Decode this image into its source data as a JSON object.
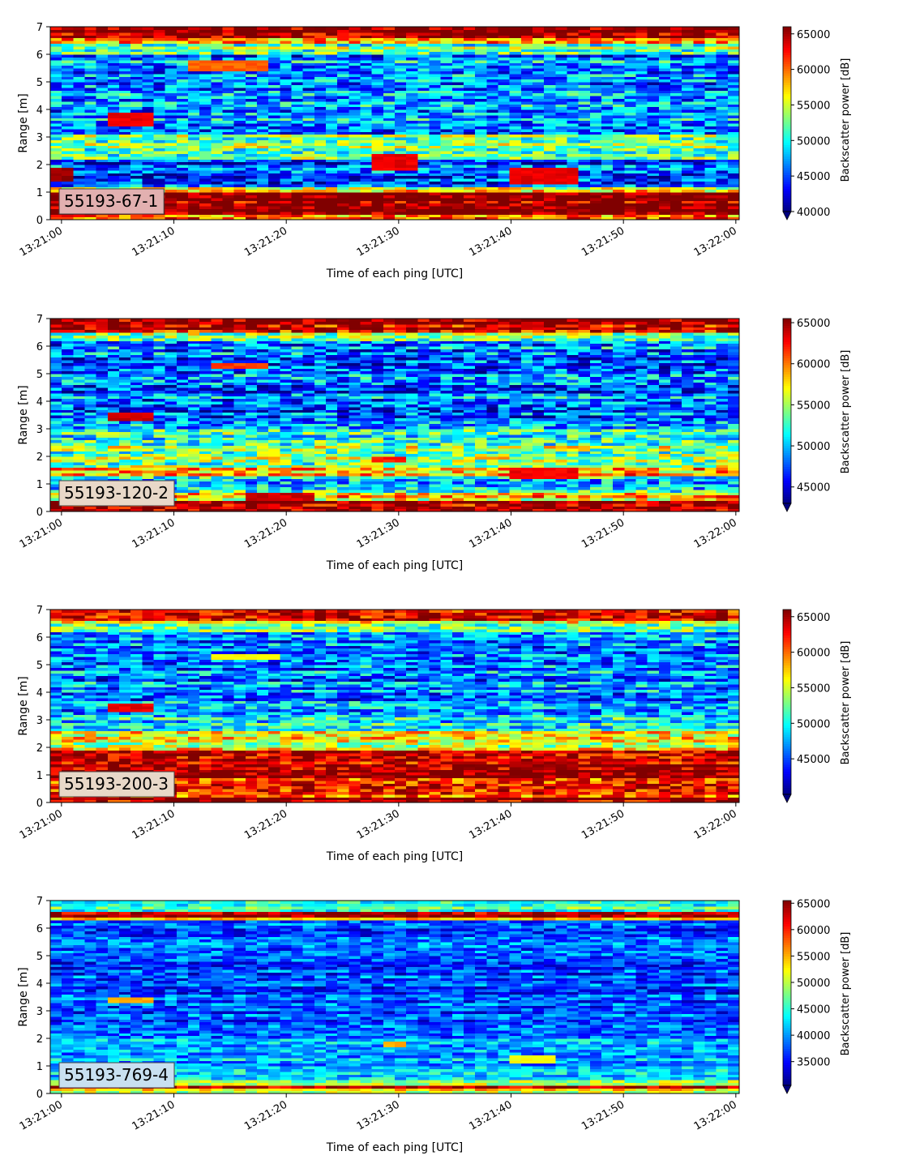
{
  "figure": {
    "xlabel": "Time of each ping [UTC]",
    "ylabel": "Range [m]",
    "colorbar_label": "Backscatter power [dB]",
    "colormap": "jet"
  },
  "chart_data": [
    {
      "type": "heatmap",
      "label": "55193-67-1",
      "label_box_color": "#e2b0b0",
      "x_range": [
        "13:21:00",
        "13:22:00"
      ],
      "x_ticks": [
        "13:21:00",
        "13:21:10",
        "13:21:20",
        "13:21:30",
        "13:21:40",
        "13:21:50",
        "13:22:00"
      ],
      "y_range": [
        0,
        7
      ],
      "y_ticks": [
        0,
        1,
        2,
        3,
        4,
        5,
        6,
        7
      ],
      "color_range": [
        40000,
        66000
      ],
      "colorbar_ticks": [
        40000,
        45000,
        50000,
        55000,
        60000,
        65000
      ],
      "colorbar_extend": "min",
      "background_bands": [
        {
          "from": 0.0,
          "to": 0.25,
          "value": 60000
        },
        {
          "from": 0.25,
          "to": 1.05,
          "value": 66000
        },
        {
          "from": 1.05,
          "to": 1.2,
          "value": 56000
        },
        {
          "from": 1.2,
          "to": 2.2,
          "value": 45000
        },
        {
          "from": 2.2,
          "to": 3.1,
          "value": 52000
        },
        {
          "from": 3.1,
          "to": 6.0,
          "value": 47000
        },
        {
          "from": 6.0,
          "to": 6.45,
          "value": 53000
        },
        {
          "from": 6.45,
          "to": 6.6,
          "value": 60000
        },
        {
          "from": 6.6,
          "to": 7.0,
          "value": 66000
        }
      ],
      "noise": 6000,
      "features": [
        {
          "t0": -1.0,
          "t1": 1.0,
          "r0": 1.45,
          "r1": 1.9,
          "value": 66000
        },
        {
          "t0": 3.8,
          "t1": 8.7,
          "r0": 3.4,
          "r1": 3.9,
          "value": 64000
        },
        {
          "t0": 11.5,
          "t1": 18.2,
          "r0": 5.4,
          "r1": 5.8,
          "value": 61000
        },
        {
          "t0": 27.2,
          "t1": 31.6,
          "r0": 1.8,
          "r1": 2.4,
          "value": 64000
        },
        {
          "t0": 40.2,
          "t1": 46.0,
          "r0": 1.35,
          "r1": 1.95,
          "value": 64000
        }
      ]
    },
    {
      "type": "heatmap",
      "label": "55193-120-2",
      "label_box_color": "#e8d8c8",
      "x_range": [
        "13:21:00",
        "13:22:00"
      ],
      "x_ticks": [
        "13:21:00",
        "13:21:10",
        "13:21:20",
        "13:21:30",
        "13:21:40",
        "13:21:50",
        "13:22:00"
      ],
      "y_range": [
        0,
        7
      ],
      "y_ticks": [
        0,
        1,
        2,
        3,
        4,
        5,
        6,
        7
      ],
      "color_range": [
        43000,
        65500
      ],
      "colorbar_ticks": [
        45000,
        50000,
        55000,
        60000,
        65000
      ],
      "colorbar_extend": "min",
      "background_bands": [
        {
          "from": 0.0,
          "to": 0.4,
          "value": 65500
        },
        {
          "from": 0.4,
          "to": 0.7,
          "value": 58000
        },
        {
          "from": 0.7,
          "to": 1.3,
          "value": 51000
        },
        {
          "from": 1.3,
          "to": 1.6,
          "value": 60000
        },
        {
          "from": 1.6,
          "to": 2.6,
          "value": 54000
        },
        {
          "from": 2.6,
          "to": 3.1,
          "value": 52000
        },
        {
          "from": 3.1,
          "to": 6.2,
          "value": 48000
        },
        {
          "from": 6.2,
          "to": 6.55,
          "value": 55000
        },
        {
          "from": 6.55,
          "to": 7.0,
          "value": 64500
        }
      ],
      "noise": 5500,
      "features": [
        {
          "t0": 4.0,
          "t1": 8.5,
          "r0": 3.3,
          "r1": 3.6,
          "value": 64500
        },
        {
          "t0": 13.5,
          "t1": 18.5,
          "r0": 5.2,
          "r1": 5.4,
          "value": 62000
        },
        {
          "t0": 28.0,
          "t1": 31.0,
          "r0": 1.8,
          "r1": 2.0,
          "value": 63000
        },
        {
          "t0": 39.5,
          "t1": 46.0,
          "r0": 1.2,
          "r1": 1.6,
          "value": 63500
        },
        {
          "t0": 16.0,
          "t1": 22.0,
          "r0": 0.4,
          "r1": 0.75,
          "value": 64500
        }
      ]
    },
    {
      "type": "heatmap",
      "label": "55193-200-3",
      "label_box_color": "#e8d8c8",
      "x_range": [
        "13:21:00",
        "13:22:00"
      ],
      "x_ticks": [
        "13:21:00",
        "13:21:10",
        "13:21:20",
        "13:21:30",
        "13:21:40",
        "13:21:50",
        "13:22:00"
      ],
      "y_range": [
        0,
        7
      ],
      "y_ticks": [
        0,
        1,
        2,
        3,
        4,
        5,
        6,
        7
      ],
      "color_range": [
        40000,
        66000
      ],
      "colorbar_ticks": [
        45000,
        50000,
        55000,
        60000,
        65000
      ],
      "colorbar_extend": "min",
      "background_bands": [
        {
          "from": 0.0,
          "to": 0.25,
          "value": 66000
        },
        {
          "from": 0.25,
          "to": 0.9,
          "value": 62000
        },
        {
          "from": 0.9,
          "to": 1.9,
          "value": 65000
        },
        {
          "from": 1.9,
          "to": 2.6,
          "value": 56000
        },
        {
          "from": 2.6,
          "to": 3.1,
          "value": 50000
        },
        {
          "from": 3.1,
          "to": 6.2,
          "value": 46500
        },
        {
          "from": 6.2,
          "to": 6.6,
          "value": 54000
        },
        {
          "from": 6.6,
          "to": 7.0,
          "value": 63500
        }
      ],
      "noise": 5500,
      "features": [
        {
          "t0": 4.0,
          "t1": 8.5,
          "r0": 3.3,
          "r1": 3.6,
          "value": 64000
        },
        {
          "t0": 13.5,
          "t1": 19.0,
          "r0": 5.2,
          "r1": 5.4,
          "value": 57000
        },
        {
          "t0": 28.0,
          "t1": 31.0,
          "r0": 1.8,
          "r1": 1.95,
          "value": 66000
        },
        {
          "t0": 39.5,
          "t1": 46.0,
          "r0": 1.2,
          "r1": 1.5,
          "value": 66000
        }
      ]
    },
    {
      "type": "heatmap",
      "label": "55193-769-4",
      "label_box_color": "#c8e0f0",
      "x_range": [
        "13:21:00",
        "13:22:00"
      ],
      "x_ticks": [
        "13:21:00",
        "13:21:10",
        "13:21:20",
        "13:21:30",
        "13:21:40",
        "13:21:50",
        "13:22:00"
      ],
      "y_range": [
        0,
        7
      ],
      "y_ticks": [
        0,
        1,
        2,
        3,
        4,
        5,
        6,
        7
      ],
      "color_range": [
        30500,
        65500
      ],
      "colorbar_ticks": [
        35000,
        40000,
        45000,
        50000,
        55000,
        60000,
        65000
      ],
      "colorbar_extend": "min",
      "background_bands": [
        {
          "from": 0.0,
          "to": 0.18,
          "value": 52000
        },
        {
          "from": 0.18,
          "to": 0.32,
          "value": 65500
        },
        {
          "from": 0.32,
          "to": 0.5,
          "value": 50000
        },
        {
          "from": 0.5,
          "to": 2.0,
          "value": 41000
        },
        {
          "from": 2.0,
          "to": 6.3,
          "value": 37500
        },
        {
          "from": 6.3,
          "to": 6.45,
          "value": 54000
        },
        {
          "from": 6.45,
          "to": 6.65,
          "value": 64000
        },
        {
          "from": 6.65,
          "to": 7.0,
          "value": 46000
        }
      ],
      "noise": 5500,
      "features": [
        {
          "t0": 4.0,
          "t1": 8.5,
          "r0": 3.3,
          "r1": 3.5,
          "value": 56000
        },
        {
          "t0": 28.5,
          "t1": 30.5,
          "r0": 1.7,
          "r1": 1.85,
          "value": 56000
        },
        {
          "t0": 40.0,
          "t1": 43.5,
          "r0": 1.15,
          "r1": 1.35,
          "value": 53000
        }
      ]
    }
  ]
}
